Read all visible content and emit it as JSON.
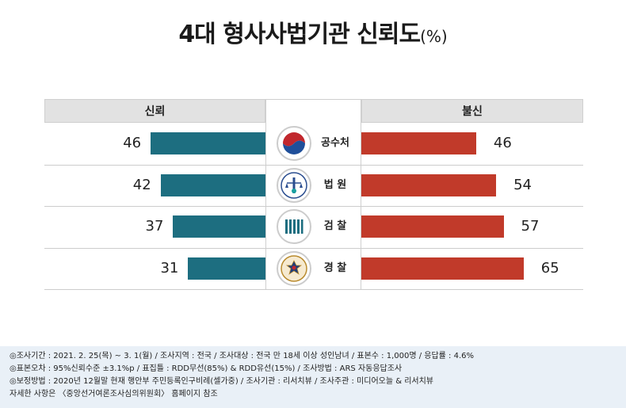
{
  "title": "4대 형사사법기관 신뢰도",
  "title_unit": "(%)",
  "header": {
    "left": "신뢰",
    "right": "불신"
  },
  "colors": {
    "trust": "#1d6e80",
    "distrust": "#c13a2a"
  },
  "chart_data": {
    "type": "bar",
    "title": "4대 형사사법기관 신뢰도",
    "unit": "%",
    "categories": [
      "공수처",
      "법 원",
      "검 찰",
      "경 찰"
    ],
    "series": [
      {
        "name": "신뢰",
        "values": [
          46,
          42,
          37,
          31
        ]
      },
      {
        "name": "불신",
        "values": [
          46,
          54,
          57,
          65
        ]
      }
    ]
  },
  "rows": [
    {
      "label": "공수처",
      "icon": "cio-emblem-icon",
      "trust_label": "46",
      "distrust_label": "46"
    },
    {
      "label": "법 원",
      "icon": "court-emblem-icon",
      "trust_label": "42",
      "distrust_label": "54"
    },
    {
      "label": "검 찰",
      "icon": "prosecution-emblem-icon",
      "trust_label": "37",
      "distrust_label": "57"
    },
    {
      "label": "경 찰",
      "icon": "police-emblem-icon",
      "trust_label": "31",
      "distrust_label": "65"
    }
  ],
  "notes": [
    "◎조사기간 : 2021. 2. 25(목) ~ 3. 1(월) / 조사지역 : 전국 / 조사대상 : 전국 만 18세 이상 성인남녀 / 표본수 : 1,000명 / 응답률 : 4.6%",
    "◎표본오차 : 95%신뢰수준 ±3.1%p / 표집틀 : RDD무선(85%) & RDD유선(15%) / 조사방법 : ARS 자동응답조사",
    "◎보정방법 : 2020년 12월말 현재 행안부 주민등록인구비례(셀가중) / 조사기관 : 리서치뷰 / 조사주관 : 미디어오늘 & 리서치뷰",
    "자세한 사항은 〈중앙선거여론조사심의위원회〉 홈페이지 참조"
  ]
}
